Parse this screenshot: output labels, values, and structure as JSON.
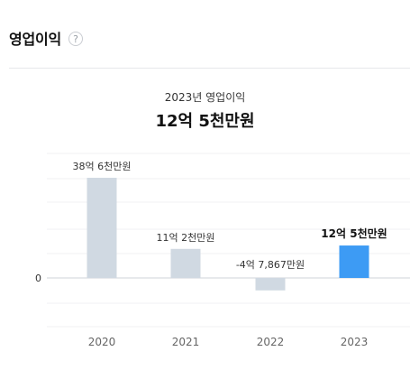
{
  "section": {
    "title": "영업이익",
    "help_glyph": "?"
  },
  "summary": {
    "subtitle": "2023년 영업이익",
    "headline": "12억 5천만원"
  },
  "chart_data": {
    "type": "bar",
    "categories": [
      "2020",
      "2021",
      "2022",
      "2023"
    ],
    "values": [
      38.6,
      11.2,
      -4.79,
      12.5
    ],
    "value_unit": "억원",
    "value_labels": [
      "38억 6천만원",
      "11억 2천만원",
      "-4억 7,867만원",
      "12억 5천만원"
    ],
    "highlight_index": 3,
    "zero_label": "0",
    "ylim": [
      -10,
      45
    ],
    "grid": true,
    "colors": {
      "bar": "#d0d9e2",
      "highlight": "#3d9bf4",
      "grid": "#f0f1f3",
      "zero_line": "#cfd3d8",
      "axis_text": "#666666"
    }
  }
}
